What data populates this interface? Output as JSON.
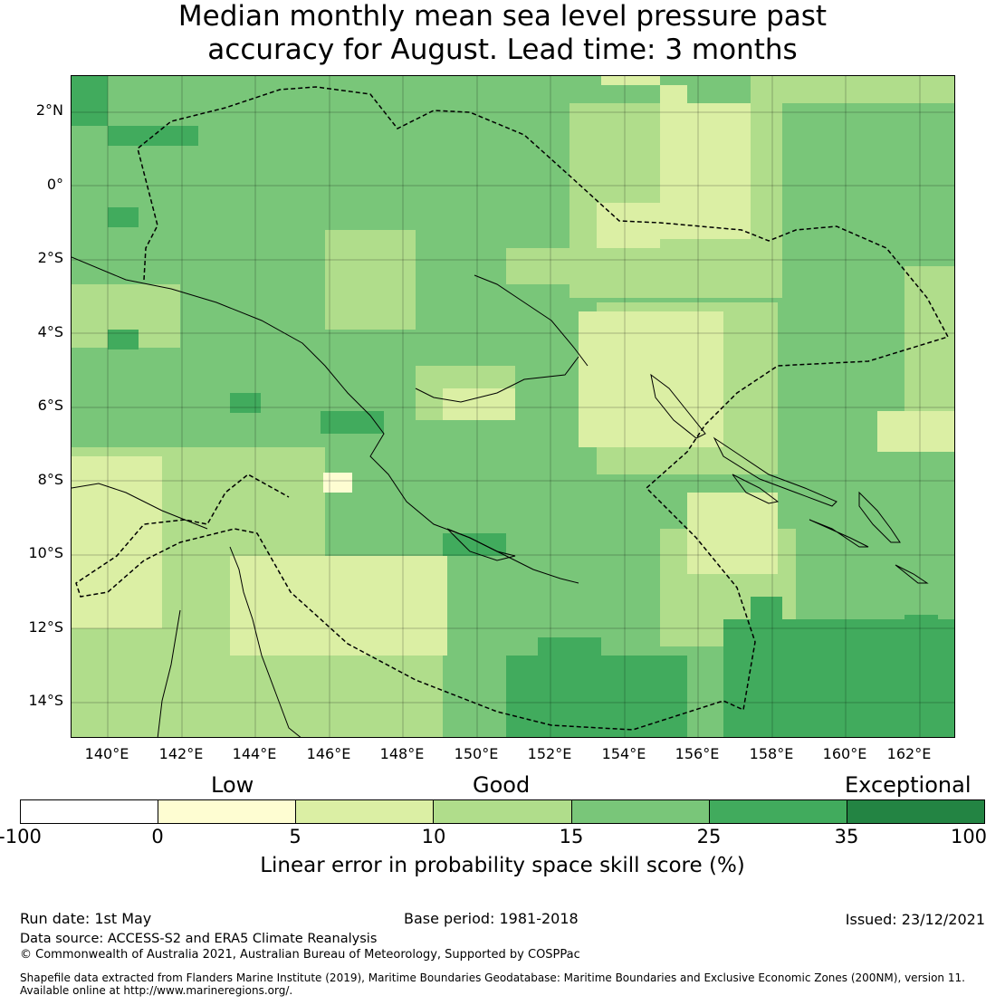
{
  "title_line1": "Median monthly mean sea level pressure past",
  "title_line2": "accuracy for August. Lead time: 3 months",
  "lat_labels": [
    "2°N",
    "0°",
    "2°S",
    "4°S",
    "6°S",
    "8°S",
    "10°S",
    "12°S",
    "14°S"
  ],
  "lon_labels": [
    "140°E",
    "142°E",
    "144°E",
    "146°E",
    "148°E",
    "150°E",
    "152°E",
    "154°E",
    "156°E",
    "158°E",
    "160°E",
    "162°E"
  ],
  "colorbar": {
    "categories": [
      "Low",
      "Good",
      "Exceptional"
    ],
    "ticks": [
      "-100",
      "0",
      "5",
      "10",
      "15",
      "25",
      "35",
      "100"
    ],
    "colors": [
      "#ffffff",
      "#fefdd2",
      "#dbefa4",
      "#b0dd8b",
      "#79c679",
      "#41ab5d",
      "#238443"
    ],
    "label": "Linear error in probability space skill score (%)"
  },
  "footer": {
    "run_date": "Run date: 1st May",
    "base_period": "Base period: 1981-2018",
    "issued": "Issued: 23/12/2021",
    "data_source": "Data source: ACCESS-S2 and ERA5 Climate Reanalysis",
    "copyright": "© Commonwealth of Australia 2021, Australian Bureau of Meteorology, Supported by COSPPac",
    "shapefile1": "Shapefile data extracted from Flanders Marine Institute (2019), Maritime Boundaries Geodatabase: Maritime Boundaries and Exclusive Economic Zones (200NM), version 11.",
    "shapefile2": "Available online at http://www.marineregions.org/."
  }
}
